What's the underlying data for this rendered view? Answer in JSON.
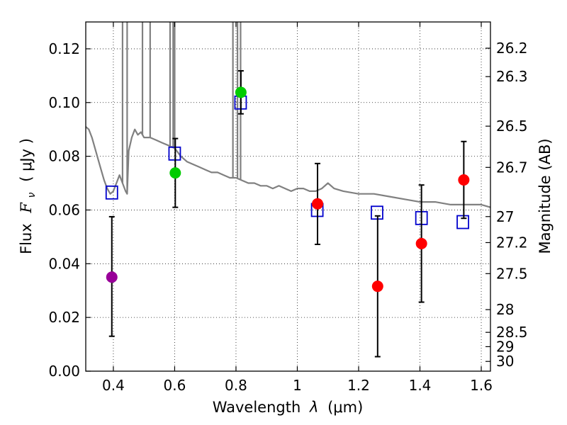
{
  "chart_data": {
    "type": "scatter",
    "xlabel_main": "Wavelength",
    "xlabel_symbol": "λ",
    "xlabel_unit": "(μm)",
    "ylabel_main": "Flux",
    "ylabel_symbol": "F",
    "ylabel_subscript": "ν",
    "ylabel_unit": "( μJy )",
    "y2label": "Magnitude (AB)",
    "xlim": [
      0.31,
      1.63
    ],
    "ylim": [
      0.0,
      0.13
    ],
    "x_ticks": [
      0.4,
      0.6,
      0.8,
      1.0,
      1.2,
      1.4,
      1.6
    ],
    "x_tick_labels": [
      "0.4",
      "0.6",
      "0.8",
      "1",
      "1.2",
      "1.4",
      "1.6"
    ],
    "y_ticks": [
      0.0,
      0.02,
      0.04,
      0.06,
      0.08,
      0.1,
      0.12
    ],
    "y_tick_labels": [
      "0.00",
      "0.02",
      "0.04",
      "0.06",
      "0.08",
      "0.10",
      "0.12"
    ],
    "mag_ticks": [
      26.2,
      26.3,
      26.5,
      26.7,
      27,
      27.2,
      27.5,
      28,
      28.5,
      29,
      30
    ],
    "mag_tick_labels": [
      "26.2",
      "26.3",
      "26.5",
      "26.7",
      "27",
      "27.2",
      "27.5",
      "28",
      "28.5",
      "29",
      "30"
    ],
    "grid": true,
    "colors": {
      "model_line": "#808080",
      "model_points": "#0000cc",
      "purple": "#990099",
      "green": "#00cc00",
      "red": "#ff0000",
      "errorbar": "#000000"
    },
    "model_sed": {
      "name": "model spectrum",
      "x": [
        0.31,
        0.32,
        0.33,
        0.34,
        0.35,
        0.36,
        0.37,
        0.38,
        0.39,
        0.4,
        0.41,
        0.42,
        0.43,
        0.44,
        0.445,
        0.45,
        0.46,
        0.47,
        0.48,
        0.49,
        0.5,
        0.52,
        0.54,
        0.56,
        0.58,
        0.6,
        0.62,
        0.64,
        0.66,
        0.68,
        0.7,
        0.72,
        0.74,
        0.76,
        0.78,
        0.8,
        0.82,
        0.84,
        0.86,
        0.88,
        0.9,
        0.92,
        0.94,
        0.96,
        0.98,
        1.0,
        1.02,
        1.04,
        1.06,
        1.08,
        1.1,
        1.12,
        1.15,
        1.2,
        1.25,
        1.3,
        1.35,
        1.4,
        1.45,
        1.5,
        1.55,
        1.6,
        1.63
      ],
      "y": [
        0.091,
        0.09,
        0.087,
        0.083,
        0.079,
        0.075,
        0.071,
        0.068,
        0.066,
        0.067,
        0.07,
        0.073,
        0.07,
        0.067,
        0.066,
        0.082,
        0.087,
        0.09,
        0.088,
        0.089,
        0.087,
        0.087,
        0.086,
        0.085,
        0.084,
        0.083,
        0.08,
        0.078,
        0.077,
        0.076,
        0.075,
        0.074,
        0.074,
        0.073,
        0.072,
        0.072,
        0.071,
        0.07,
        0.07,
        0.069,
        0.069,
        0.068,
        0.069,
        0.068,
        0.067,
        0.068,
        0.068,
        0.067,
        0.067,
        0.068,
        0.07,
        0.068,
        0.067,
        0.066,
        0.066,
        0.065,
        0.064,
        0.063,
        0.063,
        0.062,
        0.062,
        0.062,
        0.061
      ]
    },
    "model_spikes": [
      0.43,
      0.445,
      0.495,
      0.52,
      0.585,
      0.595,
      0.6,
      0.79,
      0.805,
      0.815
    ],
    "model_points": {
      "name": "model photometry",
      "marker": "open-square",
      "x": [
        0.395,
        0.6,
        0.815,
        1.065,
        1.26,
        1.405,
        1.54
      ],
      "y": [
        0.0665,
        0.081,
        0.1,
        0.06,
        0.059,
        0.057,
        0.0555
      ]
    },
    "observations": [
      {
        "x": 0.395,
        "y": 0.035,
        "err_lo": 0.022,
        "err_hi": 0.0225,
        "color": "purple"
      },
      {
        "x": 0.602,
        "y": 0.0738,
        "err_lo": 0.0128,
        "err_hi": 0.0128,
        "color": "green"
      },
      {
        "x": 0.816,
        "y": 0.1038,
        "err_lo": 0.008,
        "err_hi": 0.008,
        "color": "green"
      },
      {
        "x": 1.066,
        "y": 0.0623,
        "err_lo": 0.0151,
        "err_hi": 0.015,
        "color": "red"
      },
      {
        "x": 1.262,
        "y": 0.0316,
        "err_lo": 0.0262,
        "err_hi": 0.0262,
        "color": "red"
      },
      {
        "x": 1.405,
        "y": 0.0475,
        "err_lo": 0.0218,
        "err_hi": 0.0218,
        "color": "red"
      },
      {
        "x": 1.543,
        "y": 0.0712,
        "err_lo": 0.0143,
        "err_hi": 0.0143,
        "color": "red"
      }
    ]
  }
}
